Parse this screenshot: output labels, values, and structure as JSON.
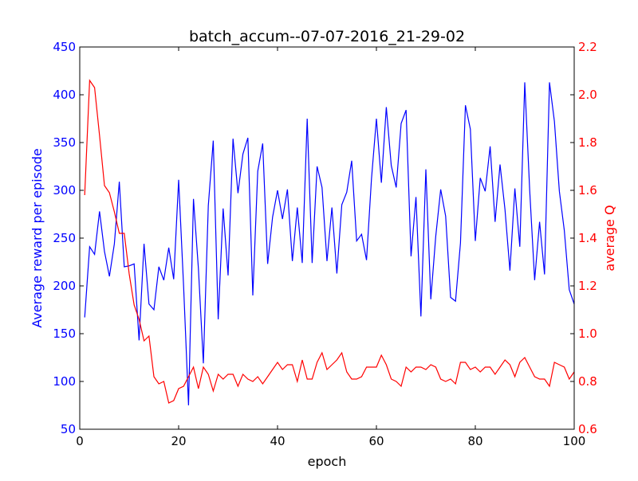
{
  "chart_data": {
    "type": "line",
    "title": "batch_accum--07-07-2016_21-29-02",
    "xlabel": "epoch",
    "ylabel": "Average reward per episode",
    "y2label": "average Q",
    "xlim": [
      0,
      100
    ],
    "ylim": [
      50,
      450
    ],
    "y2lim": [
      0.6,
      2.2
    ],
    "xticks": [
      0,
      20,
      40,
      60,
      80,
      100
    ],
    "yticks": [
      50,
      100,
      150,
      200,
      250,
      300,
      350,
      400,
      450
    ],
    "y2ticks": [
      0.6,
      0.8,
      1.0,
      1.2,
      1.4,
      1.6,
      1.8,
      2.0,
      2.2
    ],
    "x": [
      1,
      2,
      3,
      4,
      5,
      6,
      7,
      8,
      9,
      10,
      11,
      12,
      13,
      14,
      15,
      16,
      17,
      18,
      19,
      20,
      21,
      22,
      23,
      24,
      25,
      26,
      27,
      28,
      29,
      30,
      31,
      32,
      33,
      34,
      35,
      36,
      37,
      38,
      39,
      40,
      41,
      42,
      43,
      44,
      45,
      46,
      47,
      48,
      49,
      50,
      51,
      52,
      53,
      54,
      55,
      56,
      57,
      58,
      59,
      60,
      61,
      62,
      63,
      64,
      65,
      66,
      67,
      68,
      69,
      70,
      71,
      72,
      73,
      74,
      75,
      76,
      77,
      78,
      79,
      80,
      81,
      82,
      83,
      84,
      85,
      86,
      87,
      88,
      89,
      90,
      91,
      92,
      93,
      94,
      95,
      96,
      97,
      98,
      99,
      100
    ],
    "series": [
      {
        "axis": "left",
        "color": "#0000ff",
        "values": [
          167,
          241,
          233,
          278,
          236,
          210,
          244,
          309,
          220,
          221,
          223,
          143,
          244,
          181,
          175,
          220,
          206,
          240,
          207,
          311,
          200,
          75,
          291,
          218,
          119,
          284,
          352,
          165,
          281,
          211,
          354,
          297,
          338,
          355,
          190,
          320,
          349,
          223,
          272,
          300,
          270,
          301,
          226,
          282,
          224,
          375,
          224,
          325,
          303,
          226,
          282,
          213,
          285,
          298,
          331,
          247,
          254,
          227,
          312,
          375,
          308,
          387,
          326,
          303,
          370,
          384,
          231,
          293,
          168,
          322,
          186,
          252,
          301,
          273,
          188,
          184,
          245,
          389,
          364,
          247,
          313,
          299,
          346,
          267,
          327,
          280,
          216,
          302,
          241,
          413,
          300,
          206,
          267,
          212,
          413,
          372,
          299,
          258,
          196,
          181
        ]
      },
      {
        "axis": "right",
        "color": "#ff0000",
        "values": [
          1.58,
          2.06,
          2.03,
          1.83,
          1.62,
          1.59,
          1.51,
          1.42,
          1.42,
          1.25,
          1.12,
          1.06,
          0.97,
          0.99,
          0.82,
          0.79,
          0.8,
          0.71,
          0.72,
          0.77,
          0.78,
          0.82,
          0.86,
          0.77,
          0.86,
          0.83,
          0.76,
          0.83,
          0.81,
          0.83,
          0.83,
          0.78,
          0.83,
          0.81,
          0.8,
          0.82,
          0.79,
          0.82,
          0.85,
          0.88,
          0.85,
          0.87,
          0.87,
          0.8,
          0.89,
          0.81,
          0.81,
          0.88,
          0.92,
          0.85,
          0.87,
          0.89,
          0.92,
          0.84,
          0.81,
          0.81,
          0.82,
          0.86,
          0.86,
          0.86,
          0.91,
          0.87,
          0.81,
          0.8,
          0.78,
          0.86,
          0.84,
          0.86,
          0.86,
          0.85,
          0.87,
          0.86,
          0.81,
          0.8,
          0.81,
          0.79,
          0.88,
          0.88,
          0.85,
          0.86,
          0.84,
          0.86,
          0.86,
          0.83,
          0.86,
          0.89,
          0.87,
          0.82,
          0.88,
          0.9,
          0.86,
          0.82,
          0.81,
          0.81,
          0.78,
          0.88,
          0.87,
          0.86,
          0.81,
          0.84
        ]
      }
    ]
  }
}
